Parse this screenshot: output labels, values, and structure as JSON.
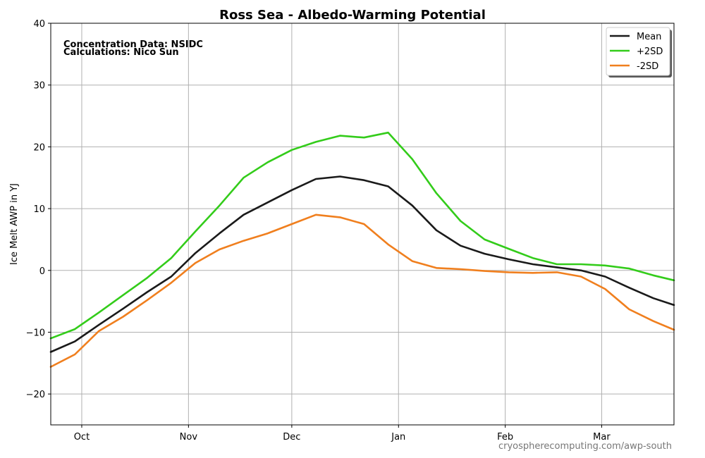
{
  "chart_data": {
    "type": "line",
    "title": "Ross Sea - Albedo-Warming Potential",
    "annotations": [
      "Concentration Data: NSIDC",
      "Calculations: Nico Sun"
    ],
    "xlabel": "",
    "ylabel": "Ice Melt AWP in  YJ",
    "x_range": [
      "Sep 22",
      "Mar 22"
    ],
    "ylim": [
      -25,
      40
    ],
    "yticks": [
      -20,
      -10,
      0,
      10,
      20,
      30,
      40
    ],
    "ytick_labels": [
      "−20",
      "−10",
      "0",
      "10",
      "20",
      "30",
      "40"
    ],
    "xticks": [
      "Oct 01",
      "Nov 01",
      "Dec 01",
      "Jan 01",
      "Feb 01",
      "Mar 01"
    ],
    "xtick_labels": [
      "Oct",
      "Nov",
      "Dec",
      "Jan",
      "Feb",
      "Mar"
    ],
    "grid": true,
    "legend_position": "top-right",
    "x": [
      "Sep 22",
      "Sep 29",
      "Oct 06",
      "Oct 13",
      "Oct 20",
      "Oct 27",
      "Nov 03",
      "Nov 10",
      "Nov 17",
      "Nov 24",
      "Dec 01",
      "Dec 08",
      "Dec 15",
      "Dec 22",
      "Dec 29",
      "Jan 05",
      "Jan 12",
      "Jan 19",
      "Jan 26",
      "Feb 02",
      "Feb 09",
      "Feb 16",
      "Feb 23",
      "Mar 02",
      "Mar 09",
      "Mar 16",
      "Mar 22"
    ],
    "series": [
      {
        "name": "Mean",
        "color": "#1a1a1a",
        "values": [
          -13.2,
          -11.5,
          -8.8,
          -6.2,
          -3.5,
          -1.0,
          2.8,
          6.0,
          9.0,
          11.0,
          13.0,
          14.8,
          15.2,
          14.6,
          13.6,
          10.5,
          6.5,
          4.0,
          2.7,
          1.8,
          1.0,
          0.5,
          0.0,
          -1.0,
          -2.8,
          -4.5,
          -5.6
        ]
      },
      {
        "name": "+2SD",
        "color": "#33cc1a",
        "values": [
          -11.0,
          -9.5,
          -6.8,
          -4.0,
          -1.2,
          2.0,
          6.3,
          10.5,
          15.0,
          17.5,
          19.5,
          20.8,
          21.8,
          21.5,
          22.3,
          18.0,
          12.5,
          8.0,
          5.0,
          3.5,
          2.0,
          1.0,
          1.0,
          0.8,
          0.3,
          -0.8,
          -1.6
        ]
      },
      {
        "name": "-2SD",
        "color": "#f07f1e",
        "values": [
          -15.6,
          -13.6,
          -9.8,
          -7.5,
          -4.8,
          -2.0,
          1.2,
          3.4,
          4.8,
          6.0,
          7.5,
          9.0,
          8.6,
          7.5,
          4.2,
          1.5,
          0.4,
          0.2,
          -0.1,
          -0.3,
          -0.4,
          -0.3,
          -1.0,
          -3.0,
          -6.3,
          -8.2,
          -9.6
        ]
      }
    ]
  },
  "footer": "cryospherecomputing.com/awp-south"
}
